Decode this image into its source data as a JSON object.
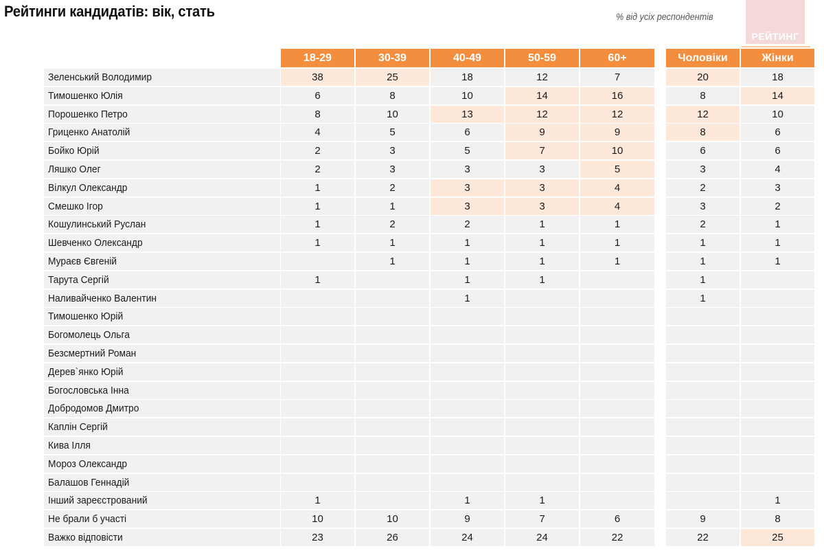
{
  "header": {
    "title": "Рейтинги кандидатів: вік, стать",
    "subtitle": "% від усіх респондентів",
    "logo_text": "РЕЙТИНГ"
  },
  "columns": {
    "age": [
      "18-29",
      "30-39",
      "40-49",
      "50-59",
      "60+"
    ],
    "gender": [
      "Чоловіки",
      "Жінки"
    ]
  },
  "colors": {
    "header_bg": "#f28e3d",
    "cell_bg": "#f1f1f1",
    "highlight_bg": "#fde8da"
  },
  "rows": [
    {
      "name": "Зеленський Володимир",
      "values": [
        "38",
        "25",
        "18",
        "12",
        "7",
        "20",
        "18"
      ],
      "hl": [
        1,
        1,
        0,
        0,
        0,
        1,
        0
      ]
    },
    {
      "name": "Тимошенко Юлія",
      "values": [
        "6",
        "8",
        "10",
        "14",
        "16",
        "8",
        "14"
      ],
      "hl": [
        0,
        0,
        0,
        1,
        1,
        0,
        1
      ]
    },
    {
      "name": "Порошенко Петро",
      "values": [
        "8",
        "10",
        "13",
        "12",
        "12",
        "12",
        "10"
      ],
      "hl": [
        0,
        0,
        1,
        1,
        1,
        1,
        0
      ]
    },
    {
      "name": "Гриценко Анатолій",
      "values": [
        "4",
        "5",
        "6",
        "9",
        "9",
        "8",
        "6"
      ],
      "hl": [
        0,
        0,
        0,
        1,
        1,
        1,
        0
      ]
    },
    {
      "name": "Бойко Юрій",
      "values": [
        "2",
        "3",
        "5",
        "7",
        "10",
        "6",
        "6"
      ],
      "hl": [
        0,
        0,
        0,
        1,
        1,
        0,
        0
      ]
    },
    {
      "name": "Ляшко Олег",
      "values": [
        "2",
        "3",
        "3",
        "3",
        "5",
        "3",
        "4"
      ],
      "hl": [
        0,
        0,
        0,
        0,
        1,
        0,
        0
      ]
    },
    {
      "name": "Вілкул Олександр",
      "values": [
        "1",
        "2",
        "3",
        "3",
        "4",
        "2",
        "3"
      ],
      "hl": [
        0,
        0,
        1,
        1,
        1,
        0,
        0
      ]
    },
    {
      "name": "Смешко Ігор",
      "values": [
        "1",
        "1",
        "3",
        "3",
        "4",
        "3",
        "2"
      ],
      "hl": [
        0,
        0,
        1,
        1,
        1,
        0,
        0
      ]
    },
    {
      "name": "Кошулинський Руслан",
      "values": [
        "1",
        "2",
        "2",
        "1",
        "1",
        "2",
        "1"
      ],
      "hl": [
        0,
        0,
        0,
        0,
        0,
        0,
        0
      ]
    },
    {
      "name": "Шевченко Олександр",
      "values": [
        "1",
        "1",
        "1",
        "1",
        "1",
        "1",
        "1"
      ],
      "hl": [
        0,
        0,
        0,
        0,
        0,
        0,
        0
      ]
    },
    {
      "name": "Мураєв Євгеній",
      "values": [
        "",
        "1",
        "1",
        "1",
        "1",
        "1",
        "1"
      ],
      "hl": [
        0,
        0,
        0,
        0,
        0,
        0,
        0
      ]
    },
    {
      "name": "Тарута Сергій",
      "values": [
        "1",
        "",
        "1",
        "1",
        "",
        "1",
        ""
      ],
      "hl": [
        0,
        0,
        0,
        0,
        0,
        0,
        0
      ]
    },
    {
      "name": "Наливайченко Валентин",
      "values": [
        "",
        "",
        "1",
        "",
        "",
        "1",
        ""
      ],
      "hl": [
        0,
        0,
        0,
        0,
        0,
        0,
        0
      ]
    },
    {
      "name": "Тимошенко Юрій",
      "values": [
        "",
        "",
        "",
        "",
        "",
        "",
        ""
      ],
      "hl": [
        0,
        0,
        0,
        0,
        0,
        0,
        0
      ]
    },
    {
      "name": "Богомолець Ольга",
      "values": [
        "",
        "",
        "",
        "",
        "",
        "",
        ""
      ],
      "hl": [
        0,
        0,
        0,
        0,
        0,
        0,
        0
      ]
    },
    {
      "name": "Безсмертний Роман",
      "values": [
        "",
        "",
        "",
        "",
        "",
        "",
        ""
      ],
      "hl": [
        0,
        0,
        0,
        0,
        0,
        0,
        0
      ]
    },
    {
      "name": "Дерев`янко Юрій",
      "values": [
        "",
        "",
        "",
        "",
        "",
        "",
        ""
      ],
      "hl": [
        0,
        0,
        0,
        0,
        0,
        0,
        0
      ]
    },
    {
      "name": "Богословська Інна",
      "values": [
        "",
        "",
        "",
        "",
        "",
        "",
        ""
      ],
      "hl": [
        0,
        0,
        0,
        0,
        0,
        0,
        0
      ]
    },
    {
      "name": "Добродомов Дмитро",
      "values": [
        "",
        "",
        "",
        "",
        "",
        "",
        ""
      ],
      "hl": [
        0,
        0,
        0,
        0,
        0,
        0,
        0
      ]
    },
    {
      "name": "Каплін Сергій",
      "values": [
        "",
        "",
        "",
        "",
        "",
        "",
        ""
      ],
      "hl": [
        0,
        0,
        0,
        0,
        0,
        0,
        0
      ]
    },
    {
      "name": "Кива Ілля",
      "values": [
        "",
        "",
        "",
        "",
        "",
        "",
        ""
      ],
      "hl": [
        0,
        0,
        0,
        0,
        0,
        0,
        0
      ]
    },
    {
      "name": "Мороз Олександр",
      "values": [
        "",
        "",
        "",
        "",
        "",
        "",
        ""
      ],
      "hl": [
        0,
        0,
        0,
        0,
        0,
        0,
        0
      ]
    },
    {
      "name": "Балашов Геннадій",
      "values": [
        "",
        "",
        "",
        "",
        "",
        "",
        ""
      ],
      "hl": [
        0,
        0,
        0,
        0,
        0,
        0,
        0
      ]
    },
    {
      "name": "Інший зареєстрований",
      "values": [
        "1",
        "",
        "1",
        "1",
        "",
        "",
        "1"
      ],
      "hl": [
        0,
        0,
        0,
        0,
        0,
        0,
        0
      ]
    },
    {
      "name": "Не брали б участі",
      "values": [
        "10",
        "10",
        "9",
        "7",
        "6",
        "9",
        "8"
      ],
      "hl": [
        0,
        0,
        0,
        0,
        0,
        0,
        0
      ]
    },
    {
      "name": "Важко відповісти",
      "values": [
        "23",
        "26",
        "24",
        "24",
        "22",
        "22",
        "25"
      ],
      "hl": [
        0,
        0,
        0,
        0,
        0,
        0,
        1
      ]
    }
  ],
  "chart_data": {
    "type": "table",
    "title": "Рейтинги кандидатів: вік, стать",
    "subtitle": "% від усіх респондентів",
    "columns": [
      "18-29",
      "30-39",
      "40-49",
      "50-59",
      "60+",
      "Чоловіки",
      "Жінки"
    ],
    "rows": [
      {
        "label": "Зеленський Володимир",
        "values": [
          38,
          25,
          18,
          12,
          7,
          20,
          18
        ]
      },
      {
        "label": "Тимошенко Юлія",
        "values": [
          6,
          8,
          10,
          14,
          16,
          8,
          14
        ]
      },
      {
        "label": "Порошенко Петро",
        "values": [
          8,
          10,
          13,
          12,
          12,
          12,
          10
        ]
      },
      {
        "label": "Гриценко Анатолій",
        "values": [
          4,
          5,
          6,
          9,
          9,
          8,
          6
        ]
      },
      {
        "label": "Бойко Юрій",
        "values": [
          2,
          3,
          5,
          7,
          10,
          6,
          6
        ]
      },
      {
        "label": "Ляшко Олег",
        "values": [
          2,
          3,
          3,
          3,
          5,
          3,
          4
        ]
      },
      {
        "label": "Вілкул Олександр",
        "values": [
          1,
          2,
          3,
          3,
          4,
          2,
          3
        ]
      },
      {
        "label": "Смешко Ігор",
        "values": [
          1,
          1,
          3,
          3,
          4,
          3,
          2
        ]
      },
      {
        "label": "Кошулинський Руслан",
        "values": [
          1,
          2,
          2,
          1,
          1,
          2,
          1
        ]
      },
      {
        "label": "Шевченко Олександр",
        "values": [
          1,
          1,
          1,
          1,
          1,
          1,
          1
        ]
      },
      {
        "label": "Мураєв Євгеній",
        "values": [
          null,
          1,
          1,
          1,
          1,
          1,
          1
        ]
      },
      {
        "label": "Тарута Сергій",
        "values": [
          1,
          null,
          1,
          1,
          null,
          1,
          null
        ]
      },
      {
        "label": "Наливайченко Валентин",
        "values": [
          null,
          null,
          1,
          null,
          null,
          1,
          null
        ]
      },
      {
        "label": "Тимошенко Юрій",
        "values": [
          null,
          null,
          null,
          null,
          null,
          null,
          null
        ]
      },
      {
        "label": "Богомолець Ольга",
        "values": [
          null,
          null,
          null,
          null,
          null,
          null,
          null
        ]
      },
      {
        "label": "Безсмертний Роман",
        "values": [
          null,
          null,
          null,
          null,
          null,
          null,
          null
        ]
      },
      {
        "label": "Дерев`янко Юрій",
        "values": [
          null,
          null,
          null,
          null,
          null,
          null,
          null
        ]
      },
      {
        "label": "Богословська Інна",
        "values": [
          null,
          null,
          null,
          null,
          null,
          null,
          null
        ]
      },
      {
        "label": "Добродомов Дмитро",
        "values": [
          null,
          null,
          null,
          null,
          null,
          null,
          null
        ]
      },
      {
        "label": "Каплін Сергій",
        "values": [
          null,
          null,
          null,
          null,
          null,
          null,
          null
        ]
      },
      {
        "label": "Кива Ілля",
        "values": [
          null,
          null,
          null,
          null,
          null,
          null,
          null
        ]
      },
      {
        "label": "Мороз Олександр",
        "values": [
          null,
          null,
          null,
          null,
          null,
          null,
          null
        ]
      },
      {
        "label": "Балашов Геннадій",
        "values": [
          null,
          null,
          null,
          null,
          null,
          null,
          null
        ]
      },
      {
        "label": "Інший зареєстрований",
        "values": [
          1,
          null,
          1,
          1,
          null,
          null,
          1
        ]
      },
      {
        "label": "Не брали б участі",
        "values": [
          10,
          10,
          9,
          7,
          6,
          9,
          8
        ]
      },
      {
        "label": "Важко відповісти",
        "values": [
          23,
          26,
          24,
          24,
          22,
          22,
          25
        ]
      }
    ]
  }
}
